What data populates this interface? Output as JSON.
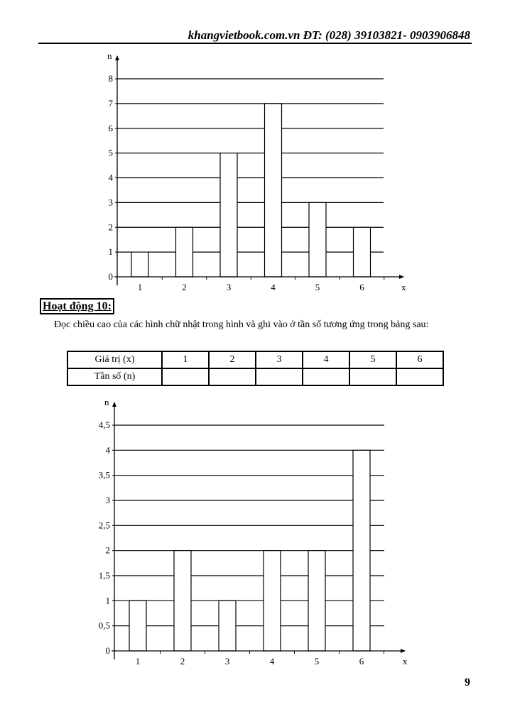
{
  "header": {
    "text": "khangvietbook.com.vn  ĐT: (028) 39103821- 0903906848"
  },
  "activity": {
    "heading": "Hoạt động 10:",
    "instruction": "Đọc chiều cao của các hình chữ nhật trong hình và ghi vào ở tần số tương ứng trong bảng sau:"
  },
  "table": {
    "row_labels": [
      "Giá trị (x)",
      "Tần số (n)"
    ],
    "values": [
      "1",
      "2",
      "3",
      "4",
      "5",
      "6"
    ],
    "frequencies": [
      "",
      "",
      "",
      "",
      "",
      ""
    ]
  },
  "page_number": "9",
  "chart_data": [
    {
      "type": "bar",
      "xlabel": "x",
      "ylabel": "n",
      "categories": [
        "1",
        "2",
        "3",
        "4",
        "5",
        "6"
      ],
      "values": [
        1,
        2,
        5,
        7,
        3,
        2
      ],
      "yticks": [
        "0",
        "1",
        "2",
        "3",
        "4",
        "5",
        "6",
        "7",
        "8"
      ],
      "ylim": [
        0,
        8
      ],
      "grid": true
    },
    {
      "type": "bar",
      "xlabel": "x",
      "ylabel": "n",
      "categories": [
        "1",
        "2",
        "3",
        "4",
        "5",
        "6"
      ],
      "values": [
        1,
        2,
        1,
        2,
        2,
        4
      ],
      "yticks": [
        "0",
        "0,5",
        "1",
        "1,5",
        "2",
        "2,5",
        "3",
        "3,5",
        "4",
        "4,5"
      ],
      "ylim": [
        0,
        4.5
      ],
      "grid": true
    }
  ]
}
